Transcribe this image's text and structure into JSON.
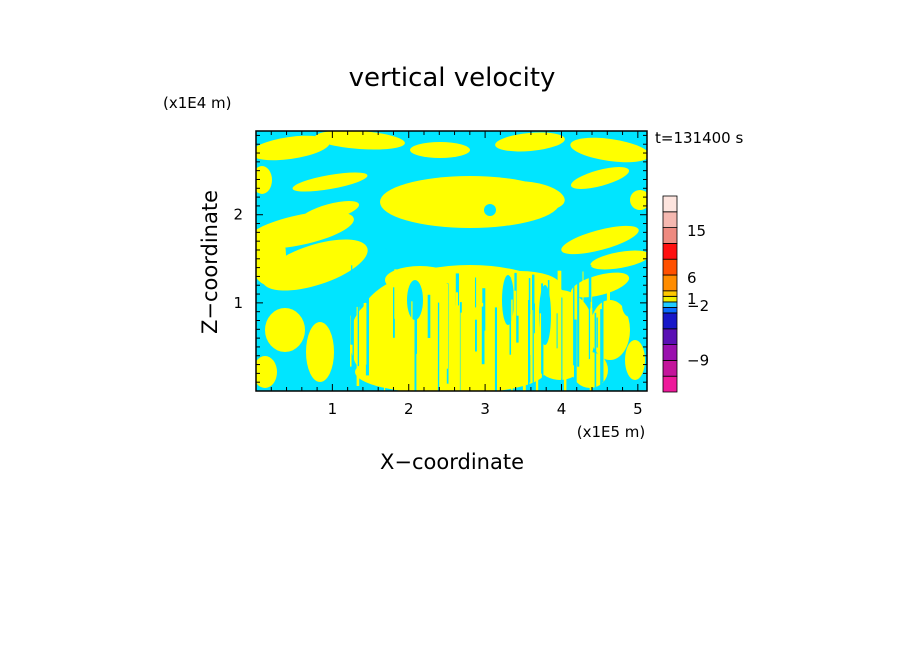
{
  "chart_data": {
    "type": "heatmap",
    "title": "vertical velocity",
    "xlabel": "X−coordinate",
    "ylabel": "Z−coordinate",
    "x_scale_label": "(x1E5 m)",
    "y_scale_label": "(x1E4 m)",
    "time_label": "t=131400 s",
    "xlim": [
      0,
      5.12
    ],
    "ylim": [
      0,
      2.95
    ],
    "x_ticks": [
      1,
      2,
      3,
      4,
      5
    ],
    "y_ticks": [
      1,
      2
    ],
    "x_tick_labels": [
      "1",
      "2",
      "3",
      "4",
      "5"
    ],
    "y_tick_labels": [
      "1",
      "2"
    ],
    "field_colors": {
      "positive": "#ffff00",
      "negative": "#00e5ff"
    },
    "colorbar": {
      "levels": [
        {
          "color": "#ee1a9b"
        },
        {
          "color": "#c4159b"
        },
        {
          "color": "#9a10ae"
        },
        {
          "color": "#5a10b4"
        },
        {
          "color": "#1818c8"
        },
        {
          "color": "#0a6cff"
        },
        {
          "color": "#22ccff"
        },
        {
          "color": "#f0f000"
        },
        {
          "color": "#ffc800"
        },
        {
          "color": "#ff8c00"
        },
        {
          "color": "#ff5000"
        },
        {
          "color": "#ff1010"
        },
        {
          "color": "#ee8a80"
        },
        {
          "color": "#f5b8b0"
        },
        {
          "color": "#fde4de"
        }
      ],
      "labels": [
        {
          "text": "15",
          "at_level": 12.8
        },
        {
          "text": "6",
          "at_level": 9.8
        },
        {
          "text": "1",
          "at_level": 7.55
        },
        {
          "text": "−2",
          "at_level": 6.3
        },
        {
          "text": "−9",
          "at_level": 2.0
        }
      ]
    }
  }
}
